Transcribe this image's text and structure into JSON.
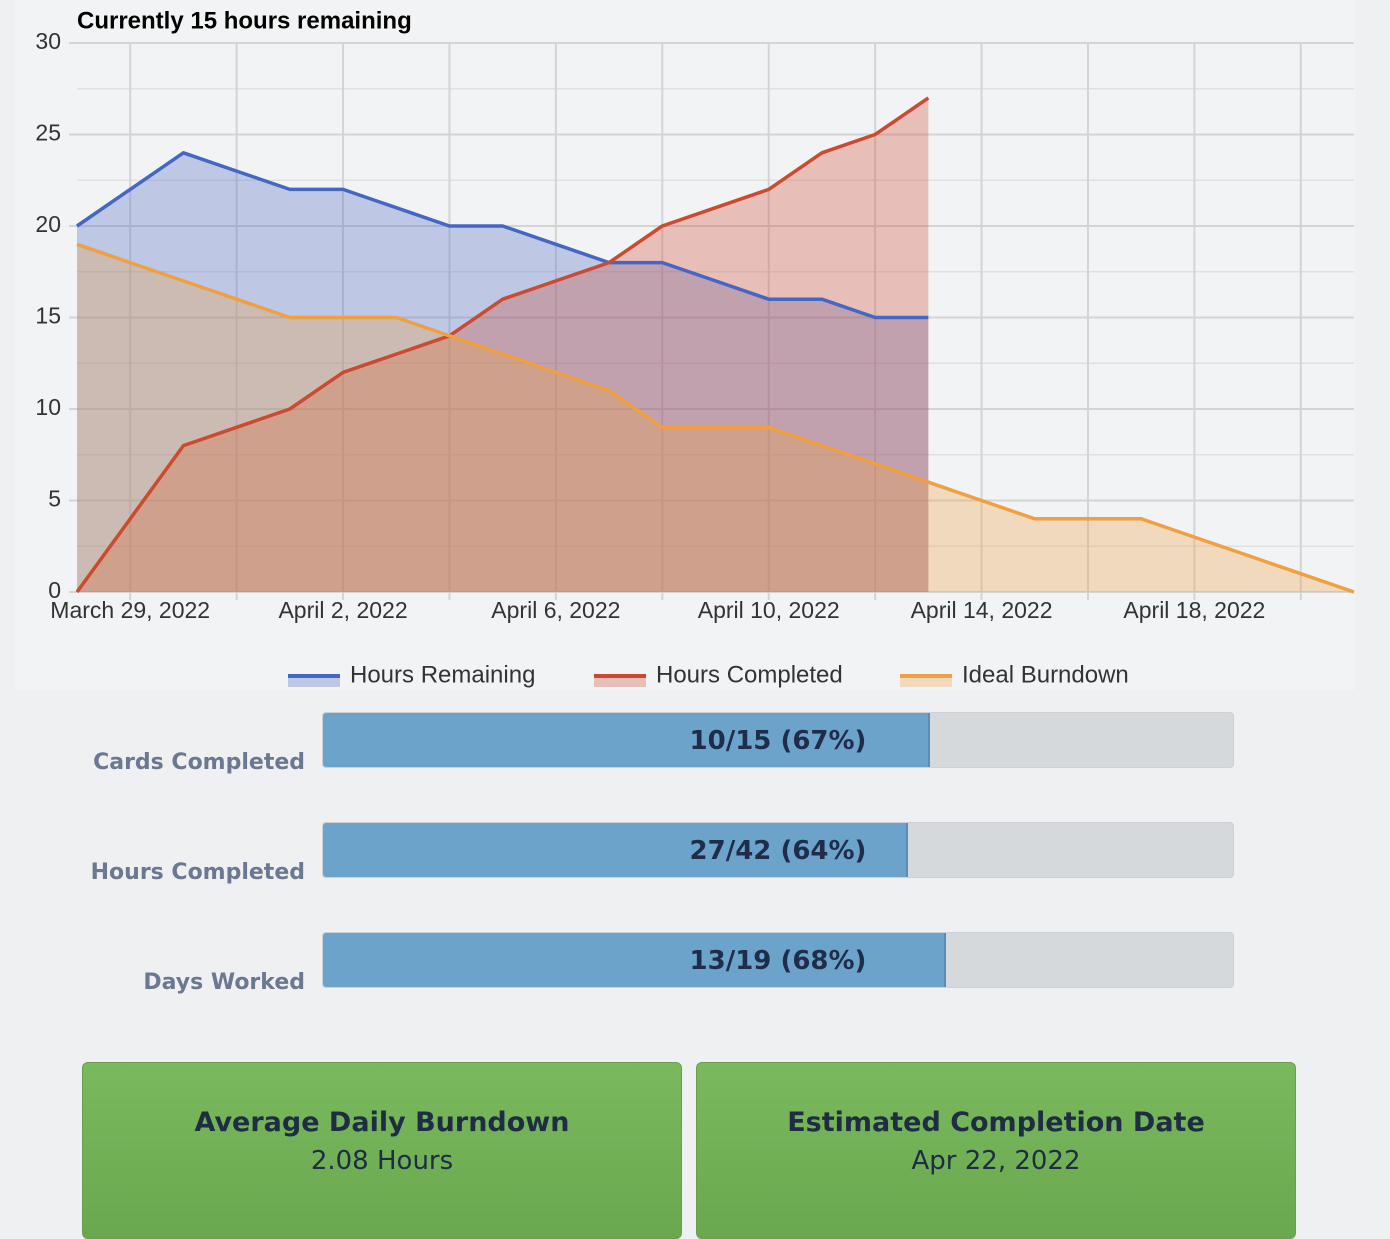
{
  "chart_data": {
    "type": "line",
    "title": "Currently 15 hours remaining",
    "categories": [
      null,
      "March 29, 2022",
      null,
      null,
      null,
      "April 2, 2022",
      null,
      null,
      null,
      "April 6, 2022",
      null,
      null,
      null,
      "April 10, 2022",
      null,
      null,
      null,
      "April 14, 2022",
      null,
      null,
      null,
      "April 18, 2022",
      null,
      null,
      null
    ],
    "series": [
      {
        "name": "Hours Remaining",
        "color": "#4466c4",
        "values": [
          20,
          22,
          24,
          23,
          22,
          22,
          21,
          20,
          20,
          19,
          18,
          18,
          17,
          16,
          16,
          15,
          15,
          null,
          null,
          null,
          null,
          null,
          null,
          null,
          null
        ]
      },
      {
        "name": "Hours Completed",
        "color": "#cc4a2e",
        "values": [
          0,
          4,
          8,
          9,
          10,
          12,
          13,
          14,
          16,
          17,
          18,
          20,
          21,
          22,
          24,
          25,
          27,
          null,
          null,
          null,
          null,
          null,
          null,
          null,
          null
        ]
      },
      {
        "name": "Ideal Burndown",
        "color": "#f0a040",
        "values": [
          19,
          18,
          17,
          16,
          15,
          15,
          15,
          14,
          13,
          12,
          11,
          9,
          9,
          9,
          8,
          7,
          6,
          5,
          4,
          4,
          4,
          3,
          2,
          1,
          0
        ]
      }
    ],
    "fill": true,
    "ylim": [
      0,
      30
    ],
    "yticks": [
      0,
      5,
      10,
      15,
      20,
      25,
      30
    ],
    "y_minor_ticks": [
      2.5,
      7.5,
      12.5,
      17.5,
      22.5,
      27.5
    ],
    "grid": true,
    "legend": "bottom"
  },
  "progress": [
    {
      "label": "Cards Completed",
      "text": "10/15 (67%)",
      "value": 10,
      "max": 15
    },
    {
      "label": "Hours Completed",
      "text": "27/42 (64%)",
      "value": 27,
      "max": 42
    },
    {
      "label": "Days Worked",
      "text": "13/19 (68%)",
      "value": 13,
      "max": 19
    }
  ],
  "cards": [
    {
      "title": "Average Daily Burndown",
      "value": "2.08 Hours"
    },
    {
      "title": "Estimated Completion Date",
      "value": "Apr 22, 2022"
    }
  ]
}
